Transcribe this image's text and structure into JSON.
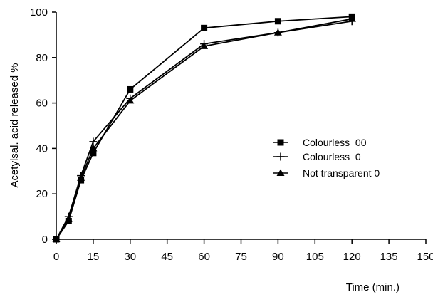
{
  "chart_data": {
    "type": "line",
    "title": "",
    "xlabel": "Time (min.)",
    "ylabel": "Acetylsal. acid released %",
    "xlim": [
      0,
      150
    ],
    "ylim": [
      0,
      100
    ],
    "xticks": [
      "0",
      "15",
      "30",
      "45",
      "60",
      "75",
      "90",
      "105",
      "120",
      "135",
      "150"
    ],
    "yticks": [
      "0",
      "20",
      "40",
      "60",
      "80",
      "100"
    ],
    "grid": false,
    "legend_position": "right",
    "series": [
      {
        "name": "Colourless  00",
        "marker": "square",
        "color": "#000000",
        "points": [
          {
            "x": 0,
            "y": 0
          },
          {
            "x": 5,
            "y": 8
          },
          {
            "x": 10,
            "y": 26
          },
          {
            "x": 15,
            "y": 38
          },
          {
            "x": 30,
            "y": 66
          },
          {
            "x": 60,
            "y": 93
          },
          {
            "x": 90,
            "y": 96
          },
          {
            "x": 120,
            "y": 98
          }
        ]
      },
      {
        "name": "Colourless  0",
        "marker": "plus",
        "color": "#000000",
        "points": [
          {
            "x": 0,
            "y": 0
          },
          {
            "x": 5,
            "y": 10
          },
          {
            "x": 10,
            "y": 28
          },
          {
            "x": 15,
            "y": 43
          },
          {
            "x": 30,
            "y": 62
          },
          {
            "x": 60,
            "y": 86
          },
          {
            "x": 90,
            "y": 91
          },
          {
            "x": 120,
            "y": 96
          }
        ]
      },
      {
        "name": "Not transparent 0",
        "marker": "triangle",
        "color": "#000000",
        "points": [
          {
            "x": 0,
            "y": 0
          },
          {
            "x": 5,
            "y": 9
          },
          {
            "x": 10,
            "y": 27
          },
          {
            "x": 15,
            "y": 40
          },
          {
            "x": 30,
            "y": 61
          },
          {
            "x": 60,
            "y": 85
          },
          {
            "x": 90,
            "y": 91
          },
          {
            "x": 120,
            "y": 97
          }
        ]
      }
    ]
  }
}
